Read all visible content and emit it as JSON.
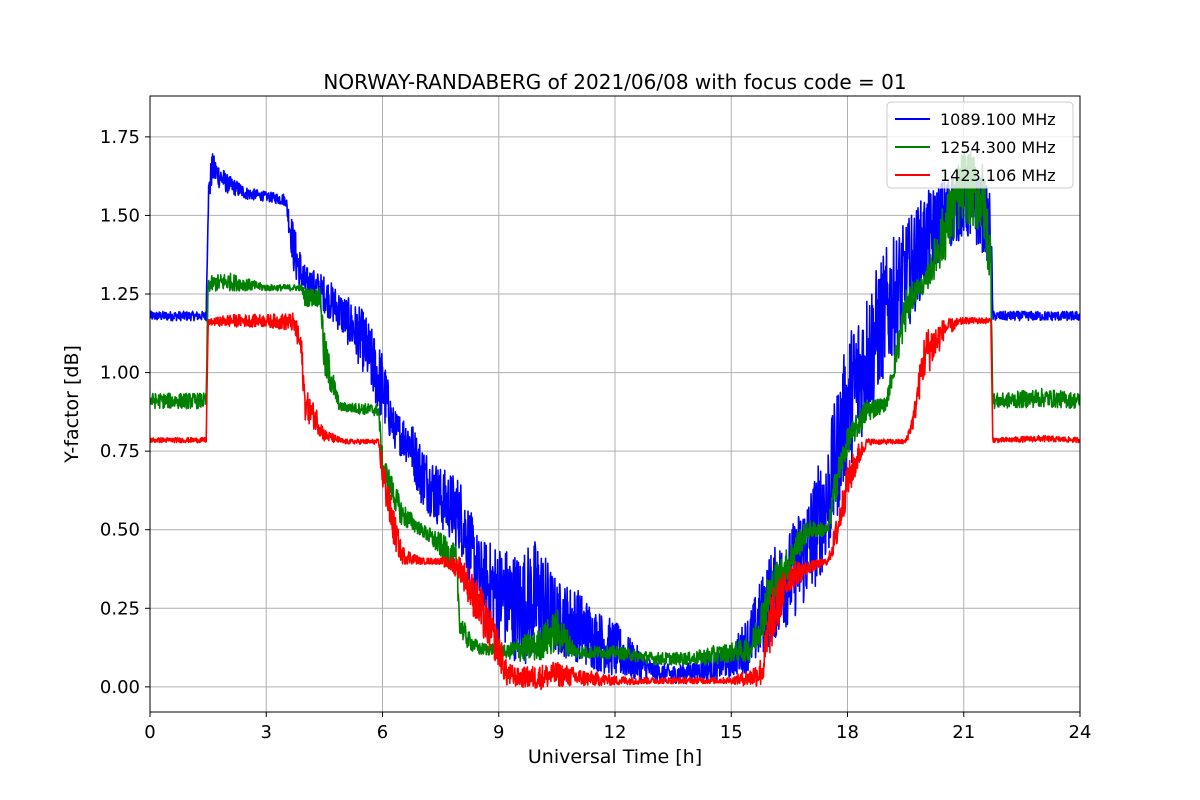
{
  "chart_data": {
    "type": "line",
    "title": "NORWAY-RANDABERG of 2021/06/08 with focus code = 01",
    "xlabel": "Universal Time [h]",
    "ylabel": "Y-factor [dB]",
    "xlim": [
      0,
      24
    ],
    "ylim": [
      -0.08,
      1.88
    ],
    "xticks": [
      0,
      3,
      6,
      9,
      12,
      15,
      18,
      21,
      24
    ],
    "xtick_labels": [
      "0",
      "3",
      "6",
      "9",
      "12",
      "15",
      "18",
      "21",
      "24"
    ],
    "yticks": [
      0.0,
      0.25,
      0.5,
      0.75,
      1.0,
      1.25,
      1.5,
      1.75
    ],
    "ytick_labels": [
      "0.00",
      "0.25",
      "0.50",
      "0.75",
      "1.00",
      "1.25",
      "1.50",
      "1.75"
    ],
    "grid": true,
    "legend_position": "top-right",
    "series": [
      {
        "name": "1089.100 MHz",
        "color": "#0000ff",
        "x": [
          0,
          1.45,
          1.5,
          1.6,
          2.0,
          2.5,
          3.0,
          3.5,
          3.7,
          3.8,
          4.0,
          4.2,
          4.5,
          5.0,
          5.5,
          6.0,
          6.3,
          6.7,
          7.0,
          7.5,
          8.0,
          8.5,
          9.0,
          9.5,
          10.0,
          10.5,
          11.0,
          11.5,
          12.0,
          12.5,
          13.0,
          13.5,
          14.0,
          14.5,
          15.0,
          15.5,
          16.0,
          16.5,
          17.0,
          17.5,
          18.0,
          18.5,
          19.0,
          19.5,
          20.0,
          20.5,
          21.0,
          21.5,
          21.7,
          21.75,
          22.0,
          23.0,
          24.0
        ],
        "y": [
          1.18,
          1.18,
          1.55,
          1.65,
          1.6,
          1.57,
          1.56,
          1.55,
          1.4,
          1.35,
          1.28,
          1.28,
          1.25,
          1.18,
          1.1,
          0.95,
          0.82,
          0.78,
          0.68,
          0.6,
          0.55,
          0.35,
          0.3,
          0.25,
          0.28,
          0.22,
          0.2,
          0.15,
          0.12,
          0.08,
          0.05,
          0.04,
          0.05,
          0.06,
          0.08,
          0.15,
          0.28,
          0.35,
          0.45,
          0.6,
          0.9,
          1.05,
          1.2,
          1.3,
          1.42,
          1.5,
          1.55,
          1.5,
          1.45,
          1.18,
          1.18,
          1.18,
          1.18
        ],
        "amp": [
          0.015,
          0.015,
          0.06,
          0.05,
          0.03,
          0.02,
          0.015,
          0.02,
          0.08,
          0.08,
          0.06,
          0.05,
          0.06,
          0.07,
          0.1,
          0.12,
          0.06,
          0.08,
          0.1,
          0.1,
          0.12,
          0.12,
          0.16,
          0.18,
          0.2,
          0.12,
          0.12,
          0.1,
          0.09,
          0.06,
          0.03,
          0.03,
          0.03,
          0.04,
          0.05,
          0.1,
          0.15,
          0.15,
          0.18,
          0.2,
          0.22,
          0.22,
          0.2,
          0.18,
          0.15,
          0.12,
          0.12,
          0.12,
          0.12,
          0.015,
          0.015,
          0.015,
          0.015
        ]
      },
      {
        "name": "1254.300 MHz",
        "color": "#008000",
        "x": [
          0,
          1.45,
          1.5,
          2.0,
          3.0,
          3.9,
          4.0,
          4.4,
          4.5,
          4.9,
          5.0,
          5.9,
          6.0,
          6.5,
          7.0,
          7.5,
          7.9,
          8.0,
          8.2,
          8.5,
          9.0,
          9.2,
          9.5,
          10.0,
          10.5,
          11.0,
          12.0,
          13.0,
          14.0,
          14.5,
          15.0,
          15.5,
          15.8,
          16.0,
          16.5,
          16.7,
          17.0,
          17.5,
          17.7,
          18.0,
          18.5,
          19.0,
          19.5,
          19.8,
          20.0,
          20.5,
          21.0,
          21.5,
          21.7,
          21.75,
          22.0,
          23.0,
          24.0
        ],
        "y": [
          0.91,
          0.91,
          1.28,
          1.29,
          1.27,
          1.27,
          1.24,
          1.24,
          1.05,
          0.89,
          0.89,
          0.88,
          0.7,
          0.55,
          0.5,
          0.45,
          0.4,
          0.2,
          0.15,
          0.12,
          0.12,
          0.11,
          0.12,
          0.13,
          0.18,
          0.11,
          0.11,
          0.09,
          0.09,
          0.1,
          0.11,
          0.12,
          0.22,
          0.3,
          0.4,
          0.45,
          0.5,
          0.5,
          0.65,
          0.78,
          0.88,
          0.9,
          1.2,
          1.27,
          1.28,
          1.45,
          1.6,
          1.55,
          1.35,
          0.91,
          0.91,
          0.92,
          0.91
        ],
        "amp": [
          0.025,
          0.025,
          0.025,
          0.03,
          0.01,
          0.01,
          0.03,
          0.03,
          0.08,
          0.015,
          0.015,
          0.02,
          0.05,
          0.04,
          0.02,
          0.04,
          0.05,
          0.04,
          0.03,
          0.02,
          0.02,
          0.02,
          0.04,
          0.05,
          0.07,
          0.02,
          0.02,
          0.02,
          0.02,
          0.03,
          0.03,
          0.04,
          0.07,
          0.08,
          0.05,
          0.05,
          0.03,
          0.02,
          0.06,
          0.04,
          0.04,
          0.02,
          0.07,
          0.03,
          0.03,
          0.1,
          0.12,
          0.12,
          0.1,
          0.025,
          0.025,
          0.03,
          0.025
        ]
      },
      {
        "name": "1423.106 MHz",
        "color": "#ff0000",
        "x": [
          0,
          1.45,
          1.5,
          2.0,
          3.0,
          3.7,
          3.9,
          4.0,
          4.3,
          4.5,
          5.0,
          5.9,
          6.0,
          6.3,
          6.5,
          7.0,
          7.5,
          8.0,
          8.5,
          9.0,
          9.2,
          9.5,
          10.0,
          10.5,
          11.0,
          12.0,
          13.0,
          14.0,
          15.0,
          15.5,
          15.8,
          16.0,
          16.5,
          17.0,
          17.5,
          17.7,
          18.0,
          18.3,
          18.5,
          19.0,
          19.5,
          19.7,
          19.9,
          20.0,
          20.3,
          20.5,
          21.0,
          21.5,
          21.7,
          21.75,
          22.0,
          23.0,
          24.0
        ],
        "y": [
          0.785,
          0.785,
          1.16,
          1.165,
          1.165,
          1.16,
          1.08,
          0.9,
          0.85,
          0.8,
          0.78,
          0.78,
          0.68,
          0.5,
          0.42,
          0.4,
          0.4,
          0.38,
          0.25,
          0.12,
          0.04,
          0.03,
          0.03,
          0.04,
          0.03,
          0.02,
          0.02,
          0.02,
          0.02,
          0.03,
          0.05,
          0.2,
          0.35,
          0.38,
          0.4,
          0.48,
          0.65,
          0.74,
          0.78,
          0.78,
          0.78,
          0.85,
          1.0,
          1.06,
          1.1,
          1.14,
          1.165,
          1.165,
          1.165,
          0.785,
          0.785,
          0.79,
          0.785
        ],
        "amp": [
          0.008,
          0.008,
          0.008,
          0.02,
          0.02,
          0.03,
          0.05,
          0.05,
          0.04,
          0.02,
          0.008,
          0.008,
          0.06,
          0.06,
          0.03,
          0.01,
          0.01,
          0.04,
          0.08,
          0.06,
          0.04,
          0.03,
          0.04,
          0.04,
          0.03,
          0.015,
          0.01,
          0.01,
          0.01,
          0.03,
          0.05,
          0.1,
          0.05,
          0.02,
          0.01,
          0.05,
          0.06,
          0.04,
          0.01,
          0.008,
          0.008,
          0.03,
          0.06,
          0.08,
          0.06,
          0.03,
          0.01,
          0.01,
          0.01,
          0.008,
          0.008,
          0.01,
          0.008
        ]
      }
    ]
  }
}
